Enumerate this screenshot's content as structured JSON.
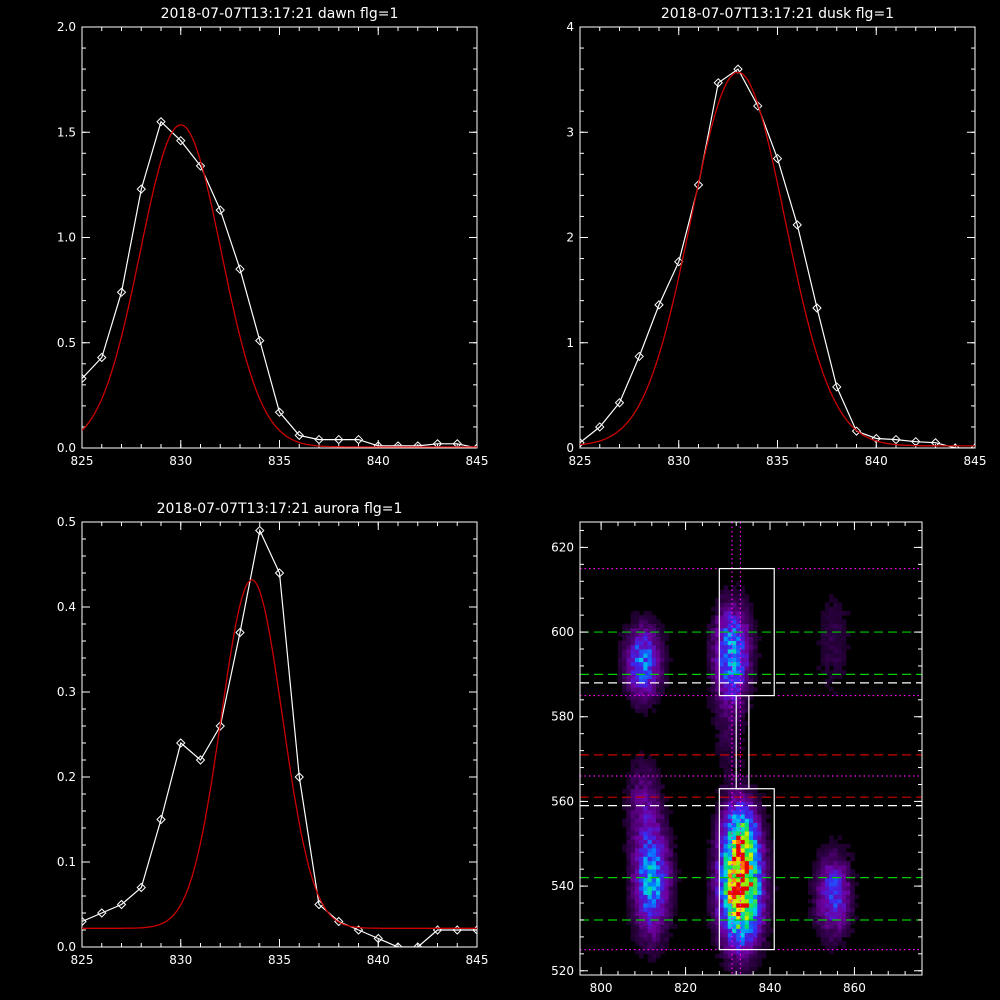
{
  "chart_data": [
    {
      "type": "line",
      "title": "2018-07-07T13:17:21 dawn flg=1",
      "xlim": [
        825,
        845
      ],
      "ylim": [
        0,
        2.0
      ],
      "xticks": [
        "825",
        "830",
        "835",
        "840",
        "845"
      ],
      "yticks": [
        "0.0",
        "0.5",
        "1.0",
        "1.5",
        "2.0"
      ],
      "series": [
        {
          "color": "#ffffff",
          "marker": "diamond",
          "x": [
            825,
            826,
            827,
            828,
            829,
            830,
            831,
            832,
            833,
            834,
            835,
            836,
            837,
            838,
            839,
            840,
            841,
            842,
            843,
            844,
            845
          ],
          "y": [
            0.33,
            0.43,
            0.74,
            1.23,
            1.55,
            1.46,
            1.34,
            1.13,
            0.85,
            0.51,
            0.17,
            0.06,
            0.04,
            0.04,
            0.04,
            0.01,
            0.01,
            0.01,
            0.02,
            0.02,
            0.0
          ]
        },
        {
          "color": "#cc0000",
          "marker": "none",
          "gaussian": {
            "amplitude": 1.53,
            "center": 830.0,
            "sigma": 2.05,
            "offset": 0.005
          }
        }
      ]
    },
    {
      "type": "line",
      "title": "2018-07-07T13:17:21 dusk flg=1",
      "xlim": [
        825,
        845
      ],
      "ylim": [
        0,
        4
      ],
      "xticks": [
        "825",
        "830",
        "835",
        "840",
        "845"
      ],
      "yticks": [
        "0",
        "1",
        "2",
        "3",
        "4"
      ],
      "series": [
        {
          "color": "#ffffff",
          "marker": "diamond",
          "x": [
            825,
            826,
            827,
            828,
            829,
            830,
            831,
            832,
            833,
            834,
            835,
            836,
            837,
            838,
            839,
            840,
            841,
            842,
            843,
            844,
            845
          ],
          "y": [
            0.05,
            0.2,
            0.43,
            0.87,
            1.36,
            1.77,
            2.5,
            3.47,
            3.6,
            3.25,
            2.75,
            2.12,
            1.33,
            0.58,
            0.16,
            0.09,
            0.08,
            0.06,
            0.05,
            0.0,
            0.0
          ]
        },
        {
          "color": "#cc0000",
          "marker": "none",
          "gaussian": {
            "amplitude": 3.55,
            "center": 833.0,
            "sigma": 2.38,
            "offset": 0.02
          }
        }
      ]
    },
    {
      "type": "line",
      "title": "2018-07-07T13:17:21 aurora flg=1",
      "xlim": [
        825,
        845
      ],
      "ylim": [
        0,
        0.5
      ],
      "xticks": [
        "825",
        "830",
        "835",
        "840",
        "845"
      ],
      "yticks": [
        "0.0",
        "0.1",
        "0.2",
        "0.3",
        "0.4",
        "0.5"
      ],
      "series": [
        {
          "color": "#ffffff",
          "marker": "diamond",
          "x": [
            825,
            826,
            827,
            828,
            829,
            830,
            831,
            832,
            833,
            834,
            835,
            836,
            837,
            838,
            839,
            840,
            841,
            842,
            843,
            844,
            845
          ],
          "y": [
            0.03,
            0.04,
            0.05,
            0.07,
            0.15,
            0.24,
            0.22,
            0.26,
            0.37,
            0.49,
            0.44,
            0.2,
            0.05,
            0.03,
            0.02,
            0.01,
            0.0,
            0.0,
            0.02,
            0.02,
            0.02
          ]
        },
        {
          "color": "#cc0000",
          "marker": "none",
          "gaussian": {
            "amplitude": 0.41,
            "center": 833.6,
            "sigma": 1.55,
            "offset": 0.022
          }
        }
      ]
    },
    {
      "type": "heatmap",
      "title": "",
      "xlim": [
        795,
        876
      ],
      "ylim": [
        519,
        626
      ],
      "xticks": [
        "800",
        "820",
        "840",
        "860"
      ],
      "yticks": [
        "520",
        "540",
        "560",
        "580",
        "600",
        "620"
      ],
      "blobs": [
        {
          "x": 810,
          "y": 593,
          "sx": 3.0,
          "sy": 6.0,
          "amp": 0.5
        },
        {
          "x": 831,
          "y": 595,
          "sx": 3.0,
          "sy": 8.0,
          "amp": 0.55
        },
        {
          "x": 812,
          "y": 541,
          "sx": 3.0,
          "sy": 9.0,
          "amp": 0.55
        },
        {
          "x": 833,
          "y": 539,
          "sx": 3.5,
          "sy": 9.0,
          "amp": 1.0
        },
        {
          "x": 833,
          "y": 553,
          "sx": 3.0,
          "sy": 6.0,
          "amp": 0.45
        },
        {
          "x": 855,
          "y": 538,
          "sx": 3.0,
          "sy": 7.0,
          "amp": 0.4
        },
        {
          "x": 855,
          "y": 598,
          "sx": 3.0,
          "sy": 9.0,
          "amp": 0.12
        },
        {
          "x": 830,
          "y": 575,
          "sx": 3.0,
          "sy": 8.0,
          "amp": 0.1
        },
        {
          "x": 810,
          "y": 560,
          "sx": 3.0,
          "sy": 8.0,
          "amp": 0.2
        }
      ],
      "boxes": [
        {
          "x0": 828,
          "x1": 841,
          "y0": 585,
          "y1": 615
        },
        {
          "x0": 832,
          "x1": 835,
          "y0": 563,
          "y1": 585
        },
        {
          "x0": 828,
          "x1": 841,
          "y0": 525,
          "y1": 563
        }
      ],
      "hlines": [
        {
          "y": 615,
          "color": "#ff00ff",
          "style": "dotted"
        },
        {
          "y": 600,
          "color": "#00cc00",
          "style": "dashed"
        },
        {
          "y": 590,
          "color": "#00cc00",
          "style": "dashed"
        },
        {
          "y": 588,
          "color": "#ffffff",
          "style": "dashed"
        },
        {
          "y": 585,
          "color": "#ff00ff",
          "style": "dotted"
        },
        {
          "y": 571,
          "color": "#cc0000",
          "style": "dashed"
        },
        {
          "y": 566,
          "color": "#ff00ff",
          "style": "dotted"
        },
        {
          "y": 561,
          "color": "#cc0000",
          "style": "dashed"
        },
        {
          "y": 559,
          "color": "#ffffff",
          "style": "dashed"
        },
        {
          "y": 542,
          "color": "#00cc00",
          "style": "dashed"
        },
        {
          "y": 532,
          "color": "#00cc00",
          "style": "dashed"
        },
        {
          "y": 525,
          "color": "#ff00ff",
          "style": "dotted"
        }
      ],
      "vlines": [
        {
          "x": 831,
          "color": "#ff00ff",
          "style": "dotted"
        },
        {
          "x": 833,
          "color": "#ff00ff",
          "style": "dotted"
        }
      ]
    }
  ]
}
